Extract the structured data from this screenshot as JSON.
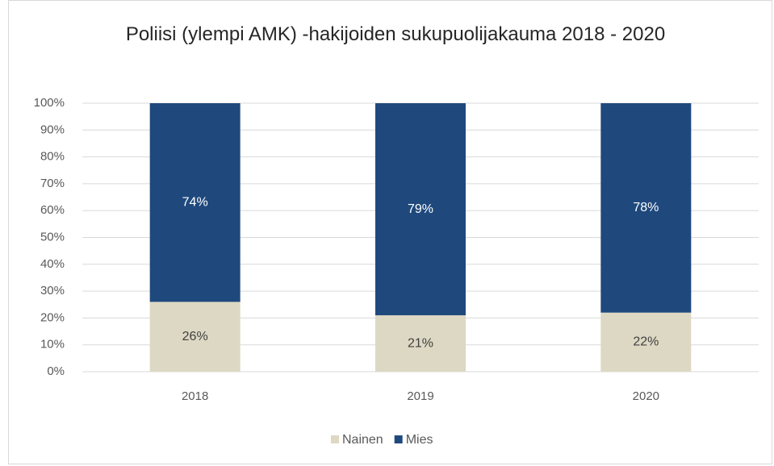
{
  "chart_data": {
    "type": "stacked_bar",
    "title": "Poliisi (ylempi AMK) -hakijoiden sukupuolijakauma 2018 - 2020",
    "categories": [
      "2018",
      "2019",
      "2020"
    ],
    "series": [
      {
        "name": "Nainen",
        "color": "#ddd8c3",
        "values": [
          26,
          21,
          22
        ],
        "value_labels": [
          "26%",
          "21%",
          "22%"
        ]
      },
      {
        "name": "Mies",
        "color": "#1f497d",
        "values": [
          74,
          79,
          78
        ],
        "value_labels": [
          "74%",
          "79%",
          "78%"
        ]
      }
    ],
    "ylim": [
      0,
      100
    ],
    "yticks": [
      {
        "value": 0,
        "label": "0%"
      },
      {
        "value": 10,
        "label": "10%"
      },
      {
        "value": 20,
        "label": "20%"
      },
      {
        "value": 30,
        "label": "30%"
      },
      {
        "value": 40,
        "label": "40%"
      },
      {
        "value": 50,
        "label": "50%"
      },
      {
        "value": 60,
        "label": "60%"
      },
      {
        "value": 70,
        "label": "70%"
      },
      {
        "value": 80,
        "label": "80%"
      },
      {
        "value": 90,
        "label": "90%"
      },
      {
        "value": 100,
        "label": "100%"
      }
    ],
    "grid": true,
    "legend": "bottom"
  }
}
